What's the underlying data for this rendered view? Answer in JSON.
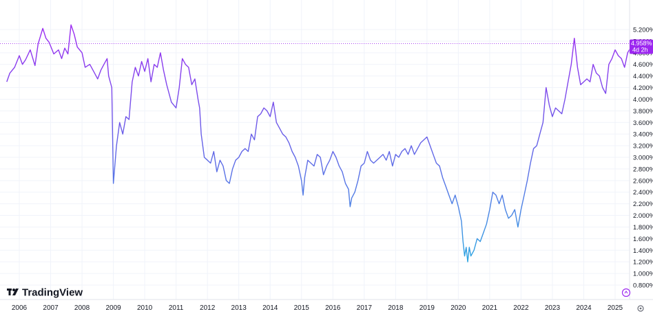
{
  "chart_data": {
    "type": "line",
    "title": "",
    "xlabel": "",
    "ylabel": "",
    "x_ticks": [
      "2006",
      "2007",
      "2008",
      "2009",
      "2010",
      "2011",
      "2012",
      "2013",
      "2014",
      "2015",
      "2016",
      "2017",
      "2018",
      "2019",
      "2020",
      "2021",
      "2022",
      "2023",
      "2024",
      "2025"
    ],
    "y_ticks": [
      "0.800%",
      "1.000%",
      "1.200%",
      "1.400%",
      "1.600%",
      "1.800%",
      "2.000%",
      "2.200%",
      "2.400%",
      "2.600%",
      "2.800%",
      "3.000%",
      "3.200%",
      "3.400%",
      "3.600%",
      "3.800%",
      "4.000%",
      "4.200%",
      "4.400%",
      "4.600%",
      "4.800%",
      "5.000%",
      "5.200%"
    ],
    "xlim": [
      2005.6,
      2025.7
    ],
    "ylim": [
      0.8,
      5.2
    ],
    "grid": true,
    "line_colors": {
      "high": "#9c27f0",
      "mid": "#5b6ee8",
      "low": "#29a3e0"
    },
    "series": [
      {
        "x": [
          2005.6,
          2005.7,
          2005.85,
          2006.0,
          2006.1,
          2006.2,
          2006.35,
          2006.5,
          2006.6,
          2006.75,
          2006.85,
          2006.95,
          2007.1,
          2007.25,
          2007.35,
          2007.45,
          2007.55,
          2007.65,
          2007.75,
          2007.85,
          2008.0,
          2008.1,
          2008.25,
          2008.4,
          2008.5,
          2008.6,
          2008.7,
          2008.8,
          2008.85,
          2008.9,
          2008.95,
          2009.0,
          2009.1,
          2009.2,
          2009.3,
          2009.4,
          2009.5,
          2009.6,
          2009.7,
          2009.8,
          2009.9,
          2010.0,
          2010.1,
          2010.2,
          2010.3,
          2010.4,
          2010.5,
          2010.6,
          2010.7,
          2010.85,
          2011.0,
          2011.1,
          2011.2,
          2011.3,
          2011.4,
          2011.5,
          2011.6,
          2011.7,
          2011.75,
          2011.8,
          2011.9,
          2012.0,
          2012.1,
          2012.2,
          2012.3,
          2012.4,
          2012.5,
          2012.6,
          2012.7,
          2012.8,
          2012.9,
          2013.0,
          2013.1,
          2013.2,
          2013.3,
          2013.4,
          2013.5,
          2013.6,
          2013.7,
          2013.8,
          2013.9,
          2014.0,
          2014.1,
          2014.2,
          2014.3,
          2014.4,
          2014.5,
          2014.6,
          2014.7,
          2014.8,
          2014.9,
          2015.0,
          2015.05,
          2015.1,
          2015.2,
          2015.3,
          2015.4,
          2015.5,
          2015.6,
          2015.7,
          2015.8,
          2015.9,
          2016.0,
          2016.1,
          2016.2,
          2016.3,
          2016.4,
          2016.5,
          2016.55,
          2016.6,
          2016.7,
          2016.8,
          2016.9,
          2017.0,
          2017.1,
          2017.2,
          2017.3,
          2017.4,
          2017.5,
          2017.6,
          2017.7,
          2017.8,
          2017.9,
          2018.0,
          2018.1,
          2018.2,
          2018.3,
          2018.4,
          2018.5,
          2018.6,
          2018.7,
          2018.8,
          2018.9,
          2019.0,
          2019.1,
          2019.2,
          2019.3,
          2019.4,
          2019.5,
          2019.6,
          2019.7,
          2019.8,
          2019.9,
          2020.0,
          2020.1,
          2020.15,
          2020.2,
          2020.25,
          2020.3,
          2020.35,
          2020.4,
          2020.5,
          2020.6,
          2020.7,
          2020.8,
          2020.9,
          2021.0,
          2021.1,
          2021.2,
          2021.3,
          2021.4,
          2021.5,
          2021.6,
          2021.7,
          2021.8,
          2021.9,
          2022.0,
          2022.1,
          2022.2,
          2022.3,
          2022.4,
          2022.5,
          2022.6,
          2022.7,
          2022.8,
          2022.9,
          2023.0,
          2023.1,
          2023.2,
          2023.3,
          2023.4,
          2023.5,
          2023.6,
          2023.7,
          2023.8,
          2023.9,
          2024.0,
          2024.1,
          2024.2,
          2024.3,
          2024.4,
          2024.5,
          2024.6,
          2024.7,
          2024.8,
          2024.9,
          2025.0,
          2025.1,
          2025.2,
          2025.3,
          2025.4,
          2025.5,
          2025.6
        ],
        "values": [
          4.3,
          4.45,
          4.55,
          4.75,
          4.6,
          4.68,
          4.85,
          4.58,
          4.95,
          5.22,
          5.05,
          4.98,
          4.78,
          4.85,
          4.7,
          4.88,
          4.78,
          5.28,
          5.12,
          4.9,
          4.8,
          4.55,
          4.6,
          4.45,
          4.35,
          4.5,
          4.6,
          4.7,
          4.4,
          4.3,
          4.2,
          2.55,
          3.2,
          3.6,
          3.4,
          3.7,
          3.65,
          4.3,
          4.55,
          4.4,
          4.65,
          4.48,
          4.7,
          4.3,
          4.6,
          4.55,
          4.8,
          4.5,
          4.25,
          3.95,
          3.85,
          4.2,
          4.7,
          4.6,
          4.55,
          4.25,
          4.35,
          4.0,
          3.85,
          3.4,
          3.0,
          2.95,
          2.9,
          3.1,
          2.75,
          2.95,
          2.85,
          2.6,
          2.55,
          2.8,
          2.95,
          3.0,
          3.1,
          3.15,
          3.1,
          3.4,
          3.3,
          3.7,
          3.75,
          3.85,
          3.8,
          3.7,
          3.95,
          3.6,
          3.5,
          3.4,
          3.35,
          3.25,
          3.1,
          3.0,
          2.85,
          2.6,
          2.35,
          2.65,
          2.95,
          2.9,
          2.85,
          3.05,
          3.0,
          2.7,
          2.85,
          2.95,
          3.1,
          3.0,
          2.85,
          2.75,
          2.55,
          2.45,
          2.15,
          2.3,
          2.4,
          2.6,
          2.85,
          2.9,
          3.1,
          2.95,
          2.9,
          2.95,
          3.0,
          3.05,
          2.95,
          3.1,
          2.85,
          3.05,
          3.0,
          3.1,
          3.15,
          3.05,
          3.2,
          3.05,
          3.15,
          3.25,
          3.3,
          3.35,
          3.2,
          3.05,
          2.9,
          2.85,
          2.65,
          2.5,
          2.35,
          2.2,
          2.35,
          2.15,
          1.9,
          1.55,
          1.3,
          1.45,
          1.2,
          1.45,
          1.3,
          1.4,
          1.6,
          1.55,
          1.7,
          1.85,
          2.1,
          2.4,
          2.35,
          2.2,
          2.35,
          2.1,
          1.95,
          2.0,
          2.1,
          1.8,
          2.1,
          2.35,
          2.6,
          2.9,
          3.15,
          3.2,
          3.4,
          3.6,
          4.2,
          3.9,
          3.7,
          3.85,
          3.8,
          3.75,
          4.0,
          4.3,
          4.6,
          5.05,
          4.55,
          4.25,
          4.3,
          4.35,
          4.3,
          4.6,
          4.45,
          4.4,
          4.2,
          4.1,
          4.6,
          4.7,
          4.85,
          4.75,
          4.7,
          4.55,
          4.8,
          4.9,
          4.95
        ]
      }
    ],
    "last_value_label": "4.958%",
    "last_value": 4.958,
    "countdown_label": "4d 2h"
  },
  "branding": {
    "logo_text": "TradingView"
  },
  "controls": {
    "settings_icon": "gear-icon",
    "goto_icon": "scroll-to-latest-icon"
  }
}
